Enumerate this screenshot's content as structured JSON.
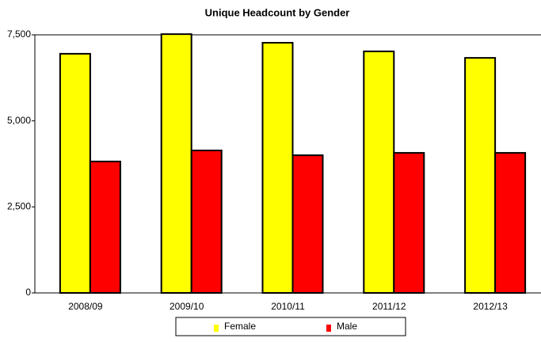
{
  "chart_data": {
    "type": "bar",
    "title": "Unique Headcount by Gender",
    "categories": [
      "2008/09",
      "2009/10",
      "2010/11",
      "2011/12",
      "2012/13"
    ],
    "series": [
      {
        "name": "Female",
        "color": "#ffff00",
        "values": [
          6950,
          7520,
          7270,
          7020,
          6830
        ]
      },
      {
        "name": "Male",
        "color": "#ff0000",
        "values": [
          3820,
          4140,
          4000,
          4070,
          4070
        ]
      }
    ],
    "ylim": [
      0,
      7500
    ],
    "yticks": [
      0,
      {
        "value": 2500,
        "label": "2,500"
      },
      {
        "value": 5000,
        "label": "5,000"
      },
      {
        "value": 7500,
        "label": "7,500"
      }
    ],
    "legend": "bottom"
  }
}
